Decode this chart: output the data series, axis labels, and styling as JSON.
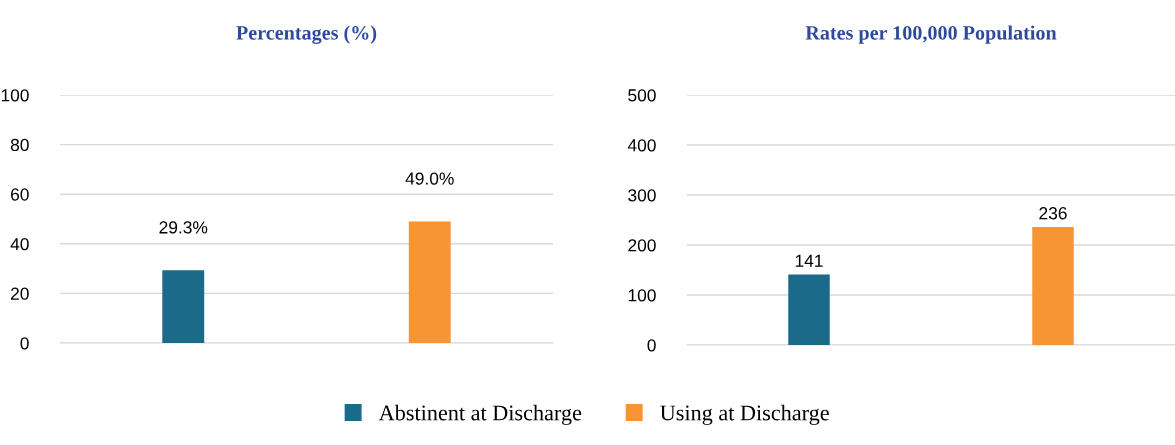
{
  "chart_data": [
    {
      "type": "bar",
      "title": "Percentages (%)",
      "categories": [
        null,
        null
      ],
      "series": [
        {
          "name": "Abstinent at Discharge",
          "color": "#1b6a8a",
          "values": [
            29.3,
            null
          ],
          "value_labels": [
            "29.3%",
            null
          ]
        },
        {
          "name": "Using at Discharge",
          "color": "#f79433",
          "values": [
            null,
            49.0
          ],
          "value_labels": [
            null,
            "49.0%"
          ]
        }
      ],
      "ylim": [
        0,
        100
      ],
      "yticks": [
        0,
        20,
        40,
        60,
        80,
        100
      ],
      "grid": "y",
      "legend": "bottom"
    },
    {
      "type": "bar",
      "title": "Rates per 100,000 Population",
      "categories": [
        null,
        null
      ],
      "series": [
        {
          "name": "Abstinent at Discharge",
          "color": "#1b6a8a",
          "values": [
            141,
            null
          ]
        },
        {
          "name": "Using at Discharge",
          "color": "#f79433",
          "values": [
            null,
            236
          ]
        }
      ],
      "ylim": [
        0,
        500
      ],
      "yticks": [
        0,
        100,
        200,
        300,
        400,
        500
      ],
      "grid": "y",
      "data_labels": true,
      "legend": "bottom"
    }
  ]
}
